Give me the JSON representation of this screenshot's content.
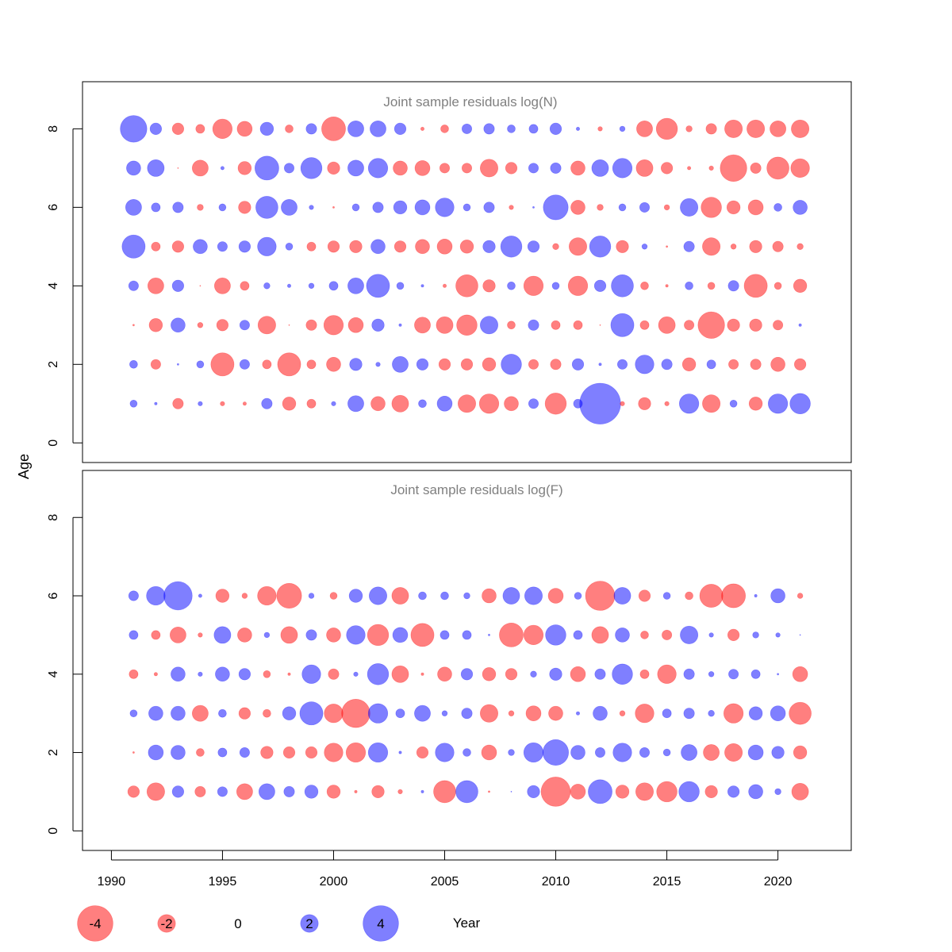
{
  "chart_data": [
    {
      "type": "scatter",
      "title": "Joint sample residuals log(N)",
      "xlabel": "Year",
      "ylabel": "Age",
      "xlim": [
        1988.7,
        2023.3
      ],
      "ylim": [
        -0.5,
        9.2
      ],
      "x_ticks": [
        1990,
        1995,
        2000,
        2005,
        2010,
        2015,
        2020
      ],
      "y_ticks": [
        0,
        2,
        4,
        6,
        8
      ],
      "years": [
        1991,
        1992,
        1993,
        1994,
        1995,
        1996,
        1997,
        1998,
        1999,
        2000,
        2001,
        2002,
        2003,
        2004,
        2005,
        2006,
        2007,
        2008,
        2009,
        2010,
        2011,
        2012,
        2013,
        2014,
        2015,
        2016,
        2017,
        2018,
        2019,
        2020,
        2021
      ],
      "ages": [
        1,
        2,
        3,
        4,
        5,
        6,
        7,
        8
      ],
      "residuals": [
        [
          0.8,
          0.3,
          -1.2,
          0.5,
          -0.5,
          -0.4,
          1.2,
          -1.5,
          -1.0,
          0.5,
          1.8,
          -1.6,
          -1.9,
          0.9,
          1.7,
          -2.0,
          -2.2,
          -1.6,
          1.1,
          -2.4,
          1.0,
          4.6,
          -0.5,
          -1.4,
          -0.5,
          2.2,
          -2.0,
          0.8,
          -1.5,
          2.2,
          2.3
        ],
        [
          0.9,
          -1.1,
          0.2,
          0.8,
          -2.6,
          1.1,
          -1.0,
          -2.6,
          -1.0,
          -1.6,
          1.4,
          0.5,
          1.8,
          1.3,
          -1.3,
          -1.3,
          -1.5,
          2.3,
          -1.1,
          -1.2,
          1.3,
          0.3,
          1.1,
          2.1,
          1.2,
          -1.5,
          1.0,
          -1.1,
          -1.2,
          -1.6,
          -1.3
        ],
        [
          -0.2,
          -1.5,
          1.6,
          -0.6,
          -1.3,
          1.1,
          -2.0,
          -0.1,
          -1.2,
          -2.2,
          -1.7,
          1.4,
          0.3,
          -1.8,
          -1.9,
          -2.3,
          2.0,
          -0.9,
          1.2,
          -1.0,
          -1.0,
          -0.1,
          2.6,
          -1.0,
          -1.9,
          -1.1,
          -3.0,
          -1.4,
          -1.4,
          -1.1,
          0.3
        ],
        [
          1.1,
          -1.8,
          1.3,
          -0.1,
          -1.8,
          -1.0,
          0.7,
          0.4,
          0.6,
          1.0,
          1.8,
          2.6,
          0.8,
          0.3,
          -0.4,
          -2.5,
          -1.4,
          0.9,
          -2.2,
          0.8,
          -2.2,
          1.3,
          2.5,
          -0.9,
          -0.3,
          0.9,
          -0.8,
          1.2,
          -2.6,
          -0.8,
          -1.5
        ],
        [
          2.6,
          -1.0,
          -1.3,
          1.6,
          1.1,
          1.3,
          2.1,
          0.8,
          -1.0,
          -1.3,
          -1.4,
          1.6,
          -1.3,
          -1.6,
          -1.7,
          -1.5,
          1.4,
          2.4,
          1.3,
          -0.7,
          -2.0,
          2.4,
          -1.4,
          0.6,
          -0.2,
          1.2,
          -2.0,
          -0.6,
          -1.4,
          -1.2,
          -0.7
        ],
        [
          1.8,
          1.0,
          1.2,
          -0.7,
          0.8,
          -1.4,
          2.5,
          1.8,
          0.5,
          -0.2,
          0.8,
          1.2,
          1.5,
          1.7,
          2.1,
          0.8,
          1.2,
          -0.5,
          0.2,
          2.8,
          -1.6,
          -0.7,
          0.8,
          1.1,
          -0.6,
          2.0,
          -2.3,
          -1.5,
          -1.7,
          0.9,
          1.6
        ],
        [
          1.6,
          1.9,
          -0.1,
          -1.8,
          0.4,
          -1.5,
          2.7,
          1.1,
          2.4,
          -1.4,
          1.8,
          2.2,
          -1.6,
          -1.7,
          -1.1,
          -1.1,
          -2.0,
          -1.3,
          1.1,
          1.2,
          -1.6,
          1.9,
          2.2,
          -1.9,
          -1.3,
          -0.4,
          -0.5,
          -3.0,
          -1.2,
          -2.5,
          -2.1
        ],
        [
          3.0,
          1.3,
          -1.3,
          -1.0,
          -2.2,
          -1.7,
          1.5,
          -0.9,
          1.2,
          -2.7,
          1.8,
          1.8,
          1.3,
          -0.4,
          -0.9,
          1.1,
          1.2,
          0.9,
          1.0,
          1.3,
          0.4,
          -0.5,
          0.6,
          -1.8,
          -2.4,
          -0.7,
          -1.2,
          -2.0,
          -2.0,
          -1.8,
          -2.0
        ]
      ]
    },
    {
      "type": "scatter",
      "title": "Joint sample residuals log(F)",
      "xlabel": "Year",
      "ylabel": "Age",
      "xlim": [
        1988.7,
        2023.3
      ],
      "ylim": [
        -0.5,
        9.2
      ],
      "x_ticks": [
        1990,
        1995,
        2000,
        2005,
        2010,
        2015,
        2020
      ],
      "y_ticks": [
        0,
        2,
        4,
        6,
        8
      ],
      "years": [
        1991,
        1992,
        1993,
        1994,
        1995,
        1996,
        1997,
        1998,
        1999,
        2000,
        2001,
        2002,
        2003,
        2004,
        2005,
        2006,
        2007,
        2008,
        2009,
        2010,
        2011,
        2012,
        2013,
        2014,
        2015,
        2016,
        2017,
        2018,
        2019,
        2020,
        2021
      ],
      "ages": [
        1,
        2,
        3,
        4,
        5,
        6
      ],
      "residuals": [
        [
          -1.3,
          -2.0,
          1.3,
          -1.2,
          1.1,
          -1.8,
          1.8,
          1.2,
          1.5,
          -1.5,
          -0.3,
          -1.4,
          -0.5,
          0.3,
          -2.5,
          2.5,
          -0.2,
          0.1,
          1.4,
          -3.3,
          -1.7,
          2.7,
          -1.5,
          -2.0,
          -2.3,
          2.3,
          -1.4,
          1.3,
          1.6,
          0.7,
          -1.9
        ],
        [
          -0.2,
          1.7,
          1.6,
          -0.9,
          1.0,
          1.1,
          -1.4,
          -1.3,
          -1.3,
          -2.1,
          -2.2,
          2.2,
          0.3,
          -1.3,
          2.1,
          0.9,
          -1.7,
          0.7,
          2.2,
          2.9,
          1.6,
          1.1,
          2.1,
          1.1,
          0.8,
          1.8,
          -1.8,
          -2.0,
          1.7,
          1.4,
          -1.5
        ],
        [
          0.8,
          1.6,
          1.6,
          -1.8,
          0.9,
          -1.3,
          -0.9,
          1.5,
          2.6,
          -2.1,
          -3.2,
          2.2,
          1.0,
          1.8,
          0.6,
          1.2,
          -2.0,
          -0.6,
          -1.7,
          -1.6,
          0.4,
          1.6,
          -0.6,
          -2.1,
          1.0,
          1.2,
          0.7,
          -2.2,
          1.5,
          1.7,
          -2.5
        ],
        [
          -1.0,
          -0.4,
          1.6,
          0.5,
          1.6,
          1.3,
          -0.8,
          -0.3,
          2.1,
          -1.2,
          0.5,
          2.4,
          -1.9,
          -0.3,
          -1.6,
          1.3,
          -1.5,
          -1.3,
          0.7,
          1.4,
          -1.7,
          1.2,
          2.3,
          -1.0,
          -2.1,
          1.2,
          0.6,
          1.1,
          1.0,
          0.2,
          -1.7
        ],
        [
          1.0,
          -1.0,
          -1.8,
          -0.5,
          1.9,
          -1.6,
          0.6,
          -1.9,
          1.2,
          -1.6,
          2.1,
          -2.4,
          1.7,
          -2.6,
          1.0,
          1.0,
          0.2,
          -2.7,
          -2.2,
          2.3,
          1.0,
          -1.9,
          1.6,
          -0.9,
          -1.1,
          2.0,
          0.5,
          -1.3,
          0.7,
          0.5,
          0.1
        ],
        [
          1.1,
          2.1,
          3.2,
          0.4,
          -1.5,
          -0.6,
          -2.1,
          -2.8,
          0.6,
          -0.8,
          1.5,
          2.0,
          -1.9,
          0.9,
          0.9,
          0.7,
          -1.6,
          1.9,
          2.0,
          -1.7,
          0.8,
          -3.3,
          1.9,
          -1.3,
          0.8,
          -0.9,
          -2.6,
          -2.7,
          0.3,
          1.6,
          -0.6
        ]
      ]
    }
  ],
  "legend": {
    "values": [
      -4,
      -2,
      0,
      2,
      4
    ],
    "labels": [
      "-4",
      "-2",
      "0",
      "2",
      "4"
    ],
    "xlabel": "Year"
  },
  "colors": {
    "positive": "#0000ff",
    "negative": "#ff0000",
    "fill_opacity": 0.5,
    "panel_title": "#808080",
    "frame": "#000000"
  }
}
